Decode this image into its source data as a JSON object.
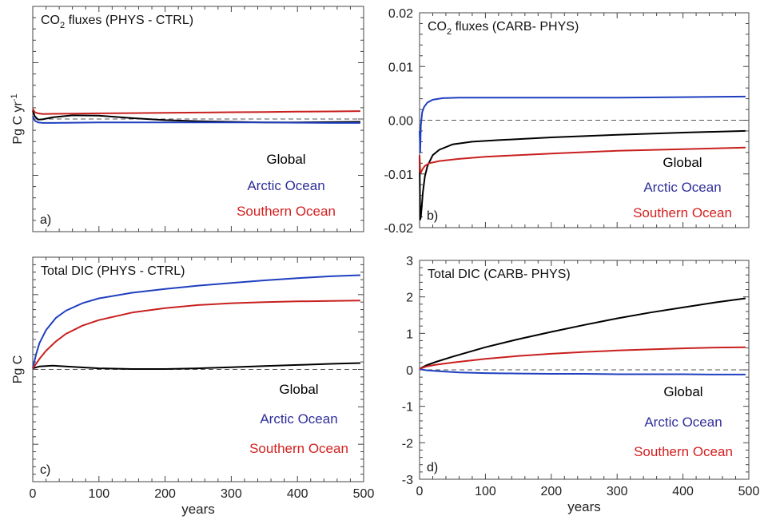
{
  "colors": {
    "global": "#000000",
    "arctic": "#1f3fbf",
    "southern": "#c8201e",
    "arctic_label": "#2e2e9a",
    "southern_label": "#d42020",
    "axis": "#444444",
    "zero_line": "#555555"
  },
  "shared": {
    "xlabel": "years",
    "legend": [
      "Global",
      "Arctic Ocean",
      "Southern Ocean"
    ]
  },
  "chart_data": [
    {
      "type": "line",
      "panel_label": "a)",
      "title_pre": "CO",
      "title_sub": "2",
      "title_post": " fluxes (PHYS - CTRL)",
      "ylabel_main": "Pg C yr",
      "ylabel_sup": "-1",
      "xlabel": "",
      "xlim": [
        0,
        500
      ],
      "ylim": [
        -0.02,
        0.02
      ],
      "show_yticklabels": false,
      "show_xticklabels": false,
      "yticks": [
        -0.02,
        -0.01,
        0.0,
        0.01,
        0.02
      ],
      "xticks": [
        0,
        100,
        200,
        300,
        400,
        500
      ],
      "legend_placement": "bottom-right",
      "series": [
        {
          "name": "Global",
          "color_key": "global",
          "x": [
            0,
            3,
            8,
            15,
            30,
            60,
            100,
            150,
            200,
            250,
            300,
            350,
            400,
            450,
            495
          ],
          "y": [
            0.0015,
            0.0005,
            -0.0001,
            -5e-05,
            0.0003,
            0.00065,
            0.0006,
            0.00015,
            -0.0002,
            -0.0004,
            -0.0005,
            -0.0006,
            -0.0006,
            -0.00055,
            -0.0005
          ]
        },
        {
          "name": "Arctic Ocean",
          "color_key": "arctic",
          "x": [
            0,
            3,
            8,
            15,
            30,
            60,
            100,
            150,
            200,
            250,
            300,
            350,
            400,
            450,
            495
          ],
          "y": [
            0.0005,
            -0.0003,
            -0.0006,
            -0.0007,
            -0.0007,
            -0.00065,
            -0.0006,
            -0.0006,
            -0.0006,
            -0.0006,
            -0.0006,
            -0.0006,
            -0.00065,
            -0.0007,
            -0.0007
          ]
        },
        {
          "name": "Southern Ocean",
          "color_key": "southern",
          "x": [
            0,
            3,
            8,
            15,
            30,
            60,
            100,
            150,
            200,
            250,
            300,
            350,
            400,
            450,
            495
          ],
          "y": [
            0.0018,
            0.0012,
            0.001,
            0.0009,
            0.00092,
            0.00095,
            0.001,
            0.00105,
            0.0011,
            0.00115,
            0.0012,
            0.00125,
            0.0013,
            0.00135,
            0.0014
          ]
        }
      ]
    },
    {
      "type": "line",
      "panel_label": "b)",
      "title_pre": "CO",
      "title_sub": "2",
      "title_post": " fluxes (CARB- PHYS)",
      "xlabel": "",
      "xlim": [
        0,
        500
      ],
      "ylim": [
        -0.02,
        0.02
      ],
      "show_yticklabels": true,
      "show_xticklabels": false,
      "yticks": [
        -0.02,
        -0.01,
        0.0,
        0.01,
        0.02
      ],
      "yticklabels": [
        "-0.02",
        "-0.01",
        "0.00",
        "0.01",
        "0.02"
      ],
      "xticks": [
        0,
        100,
        200,
        300,
        400,
        500
      ],
      "legend_placement": "bottom-right",
      "series": [
        {
          "name": "Global",
          "color_key": "global",
          "x": [
            0,
            1,
            2,
            3,
            5,
            8,
            12,
            20,
            30,
            50,
            80,
            120,
            200,
            300,
            400,
            495
          ],
          "y": [
            -0.0065,
            -0.0185,
            -0.018,
            -0.0165,
            -0.0135,
            -0.0105,
            -0.0085,
            -0.0065,
            -0.0055,
            -0.0045,
            -0.004,
            -0.0037,
            -0.0032,
            -0.0027,
            -0.0023,
            -0.002
          ]
        },
        {
          "name": "Arctic Ocean",
          "color_key": "arctic",
          "x": [
            0,
            1,
            2,
            4,
            7,
            12,
            20,
            35,
            60,
            100,
            200,
            300,
            400,
            495
          ],
          "y": [
            -0.002,
            -0.006,
            -0.001,
            0.0015,
            0.0025,
            0.0033,
            0.0038,
            0.0041,
            0.0042,
            0.0042,
            0.0042,
            0.0042,
            0.0043,
            0.0044
          ]
        },
        {
          "name": "Southern Ocean",
          "color_key": "southern",
          "x": [
            0,
            1,
            2,
            4,
            8,
            15,
            30,
            60,
            100,
            200,
            300,
            400,
            495
          ],
          "y": [
            -0.0065,
            -0.0095,
            -0.0098,
            -0.0092,
            -0.0085,
            -0.008,
            -0.0076,
            -0.0072,
            -0.0068,
            -0.0062,
            -0.0057,
            -0.0054,
            -0.0051
          ]
        }
      ]
    },
    {
      "type": "line",
      "panel_label": "c)",
      "title_pre": "Total DIC (PHYS - CTRL)",
      "title_sub": "",
      "title_post": "",
      "ylabel_main": "Pg C",
      "ylabel_sup": "",
      "xlabel": "years",
      "xlim": [
        0,
        500
      ],
      "ylim": [
        -3,
        3
      ],
      "show_yticklabels": false,
      "show_xticklabels": true,
      "yticks": [
        -3,
        -2,
        -1,
        0,
        1,
        2,
        3
      ],
      "xticks": [
        0,
        100,
        200,
        300,
        400,
        500
      ],
      "xticklabels": [
        "0",
        "100",
        "200",
        "300",
        "400",
        "500"
      ],
      "legend_placement": "bottom-right",
      "series": [
        {
          "name": "Global",
          "color_key": "global",
          "x": [
            0,
            10,
            30,
            60,
            100,
            150,
            200,
            250,
            300,
            350,
            400,
            450,
            495
          ],
          "y": [
            0.03,
            0.08,
            0.1,
            0.07,
            0.03,
            0.01,
            0.01,
            0.03,
            0.06,
            0.09,
            0.12,
            0.15,
            0.17
          ]
        },
        {
          "name": "Arctic Ocean",
          "color_key": "arctic",
          "x": [
            0,
            5,
            10,
            20,
            35,
            50,
            75,
            100,
            150,
            200,
            250,
            300,
            350,
            400,
            450,
            495
          ],
          "y": [
            0.03,
            0.4,
            0.7,
            1.05,
            1.38,
            1.57,
            1.77,
            1.9,
            2.05,
            2.15,
            2.24,
            2.31,
            2.38,
            2.44,
            2.49,
            2.52
          ]
        },
        {
          "name": "Southern Ocean",
          "color_key": "southern",
          "x": [
            0,
            5,
            10,
            20,
            35,
            50,
            75,
            100,
            150,
            200,
            250,
            300,
            350,
            400,
            450,
            495
          ],
          "y": [
            0.03,
            0.15,
            0.28,
            0.5,
            0.75,
            0.95,
            1.17,
            1.32,
            1.52,
            1.64,
            1.72,
            1.77,
            1.8,
            1.82,
            1.83,
            1.84
          ]
        }
      ]
    },
    {
      "type": "line",
      "panel_label": "d)",
      "title_pre": "Total DIC (CARB- PHYS)",
      "title_sub": "",
      "title_post": "",
      "xlabel": "years",
      "xlim": [
        0,
        500
      ],
      "ylim": [
        -3,
        3
      ],
      "show_yticklabels": true,
      "show_xticklabels": true,
      "yticks": [
        -3,
        -2,
        -1,
        0,
        1,
        2,
        3
      ],
      "yticklabels": [
        "-3",
        "-2",
        "-1",
        "0",
        "1",
        "2",
        "3"
      ],
      "xticks": [
        0,
        100,
        200,
        300,
        400,
        500
      ],
      "xticklabels": [
        "0",
        "100",
        "200",
        "300",
        "400",
        "500"
      ],
      "legend_placement": "bottom-right",
      "series": [
        {
          "name": "Global",
          "color_key": "global",
          "x": [
            0,
            10,
            25,
            50,
            100,
            150,
            200,
            250,
            300,
            350,
            400,
            450,
            495
          ],
          "y": [
            0.03,
            0.12,
            0.22,
            0.36,
            0.62,
            0.84,
            1.04,
            1.23,
            1.41,
            1.57,
            1.71,
            1.85,
            1.96
          ]
        },
        {
          "name": "Arctic Ocean",
          "color_key": "arctic",
          "x": [
            0,
            10,
            30,
            60,
            100,
            150,
            200,
            250,
            300,
            350,
            400,
            450,
            495
          ],
          "y": [
            0.02,
            -0.01,
            -0.04,
            -0.07,
            -0.09,
            -0.1,
            -0.11,
            -0.11,
            -0.12,
            -0.12,
            -0.12,
            -0.13,
            -0.13
          ]
        },
        {
          "name": "Southern Ocean",
          "color_key": "southern",
          "x": [
            0,
            10,
            25,
            50,
            100,
            150,
            200,
            250,
            300,
            350,
            400,
            450,
            495
          ],
          "y": [
            0.03,
            0.09,
            0.14,
            0.2,
            0.3,
            0.38,
            0.44,
            0.49,
            0.53,
            0.56,
            0.59,
            0.61,
            0.62
          ]
        }
      ]
    }
  ]
}
